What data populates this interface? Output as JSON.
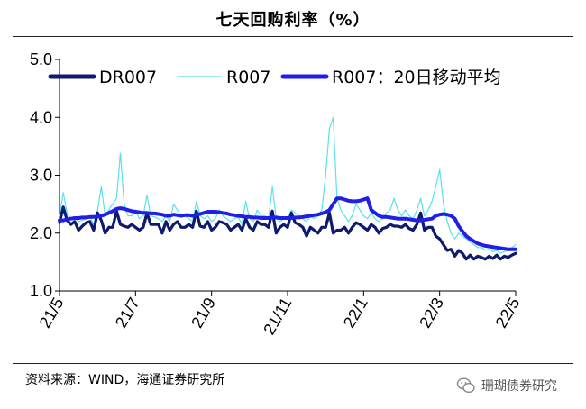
{
  "header": {
    "title": "七天回购利率（%）"
  },
  "footer": {
    "source": "资料来源：WIND，海通证券研究所"
  },
  "watermark": {
    "text": "珊瑚债券研究",
    "icon": "wechat-logo-icon"
  },
  "colors": {
    "dr007": "#0d1a6e",
    "r007": "#5ce0ee",
    "r007_ma20": "#1f1fe8",
    "axis": "#000000",
    "rule": "#222222"
  },
  "chart_data": {
    "type": "line",
    "title": "七天回购利率（%）",
    "xlabel": "",
    "ylabel": "",
    "ylim": [
      1.0,
      5.0
    ],
    "yticks": [
      "1.0",
      "2.0",
      "3.0",
      "4.0",
      "5.0"
    ],
    "xticks": [
      "21/5",
      "21/7",
      "21/9",
      "21/11",
      "22/1",
      "22/3",
      "22/5"
    ],
    "grid": false,
    "legend_position": "top",
    "x": [
      0,
      2,
      4,
      6,
      8,
      10,
      12,
      14,
      16,
      18,
      20,
      22,
      24,
      26,
      28,
      30,
      32,
      34,
      36,
      38,
      40,
      42,
      44,
      46,
      48,
      50,
      52,
      54,
      56,
      58,
      60,
      62,
      64,
      66,
      68,
      70,
      72,
      74,
      76,
      78,
      80,
      82,
      84,
      86,
      88,
      90,
      92,
      94,
      96,
      98,
      100,
      102,
      104,
      106,
      108,
      110,
      112,
      114,
      116,
      118,
      120,
      122,
      124,
      126,
      128,
      130,
      132,
      134,
      136,
      138,
      140,
      142,
      144,
      146,
      148,
      150,
      152,
      154,
      156,
      158,
      160,
      162,
      164,
      166,
      168,
      170,
      172,
      174,
      176,
      178,
      180,
      182,
      184,
      186,
      188,
      190,
      192,
      194,
      196,
      198,
      200,
      202,
      204,
      206,
      208,
      210,
      212,
      214,
      216,
      218,
      220,
      222,
      224,
      226,
      228,
      230,
      232,
      234,
      236,
      238,
      240
    ],
    "series": [
      {
        "name": "DR007",
        "values": [
          2.18,
          2.45,
          2.22,
          2.15,
          2.2,
          2.05,
          2.12,
          2.18,
          2.2,
          2.05,
          2.35,
          2.22,
          2.0,
          2.1,
          2.1,
          2.38,
          2.15,
          2.12,
          2.1,
          2.15,
          2.1,
          2.05,
          2.1,
          2.35,
          2.15,
          2.15,
          2.15,
          2.0,
          2.2,
          2.05,
          2.15,
          2.2,
          2.1,
          2.1,
          2.15,
          2.1,
          2.38,
          2.12,
          2.1,
          2.2,
          2.05,
          2.1,
          2.2,
          2.18,
          2.15,
          2.05,
          2.1,
          2.15,
          2.05,
          2.25,
          2.1,
          2.05,
          2.2,
          2.15,
          2.15,
          2.1,
          2.38,
          2.0,
          2.1,
          2.15,
          2.1,
          2.35,
          2.18,
          2.15,
          2.1,
          1.95,
          2.1,
          2.05,
          2.0,
          2.1,
          2.1,
          2.35,
          2.0,
          2.05,
          2.05,
          2.1,
          2.0,
          2.1,
          2.18,
          2.15,
          2.1,
          2.05,
          2.15,
          2.1,
          2.0,
          2.08,
          2.1,
          2.15,
          2.12,
          2.12,
          2.1,
          2.15,
          2.08,
          2.05,
          2.15,
          2.35,
          2.05,
          2.1,
          2.1,
          1.95,
          1.9,
          1.8,
          1.7,
          1.72,
          1.6,
          1.7,
          1.65,
          1.55,
          1.62,
          1.55,
          1.6,
          1.58,
          1.55,
          1.6,
          1.56,
          1.62,
          1.55,
          1.6,
          1.58,
          1.62,
          1.65
        ]
      },
      {
        "name": "R007",
        "values": [
          2.3,
          2.7,
          2.35,
          2.25,
          2.28,
          2.2,
          2.22,
          2.25,
          2.28,
          2.15,
          2.4,
          2.8,
          2.3,
          2.4,
          2.5,
          2.6,
          3.38,
          2.5,
          2.3,
          2.3,
          2.4,
          2.25,
          2.3,
          2.65,
          2.3,
          2.28,
          2.25,
          2.2,
          2.3,
          2.2,
          2.5,
          2.4,
          2.3,
          2.3,
          2.25,
          2.2,
          2.55,
          2.3,
          2.25,
          2.3,
          2.2,
          2.25,
          2.4,
          2.3,
          2.25,
          2.2,
          2.25,
          2.28,
          2.15,
          2.55,
          2.25,
          2.2,
          2.4,
          2.3,
          2.3,
          2.25,
          2.8,
          2.25,
          2.2,
          2.25,
          2.25,
          2.4,
          2.35,
          2.3,
          2.25,
          2.2,
          2.3,
          2.25,
          2.3,
          2.4,
          3.0,
          3.8,
          4.0,
          2.6,
          2.4,
          2.3,
          2.2,
          2.3,
          2.5,
          2.4,
          2.3,
          2.25,
          2.35,
          2.25,
          2.2,
          2.25,
          2.35,
          2.4,
          2.6,
          2.4,
          2.3,
          2.4,
          2.3,
          2.25,
          2.4,
          2.6,
          2.3,
          2.4,
          2.55,
          2.8,
          3.1,
          2.5,
          2.2,
          2.0,
          1.9,
          2.0,
          1.95,
          1.9,
          1.85,
          1.8,
          1.75,
          1.75,
          1.7,
          1.72,
          1.68,
          1.7,
          1.65,
          1.68,
          1.7,
          1.75,
          1.8
        ]
      },
      {
        "name": "R007：20日移动平均",
        "values": [
          2.22,
          2.22,
          2.24,
          2.25,
          2.26,
          2.26,
          2.27,
          2.27,
          2.28,
          2.28,
          2.29,
          2.3,
          2.32,
          2.35,
          2.38,
          2.42,
          2.43,
          2.42,
          2.4,
          2.38,
          2.37,
          2.36,
          2.35,
          2.35,
          2.34,
          2.34,
          2.33,
          2.32,
          2.3,
          2.3,
          2.32,
          2.31,
          2.3,
          2.31,
          2.31,
          2.3,
          2.32,
          2.33,
          2.35,
          2.37,
          2.37,
          2.37,
          2.36,
          2.35,
          2.34,
          2.32,
          2.31,
          2.3,
          2.29,
          2.28,
          2.28,
          2.27,
          2.27,
          2.26,
          2.26,
          2.26,
          2.27,
          2.27,
          2.26,
          2.26,
          2.26,
          2.26,
          2.27,
          2.27,
          2.28,
          2.29,
          2.3,
          2.31,
          2.32,
          2.34,
          2.36,
          2.4,
          2.5,
          2.6,
          2.6,
          2.58,
          2.56,
          2.55,
          2.55,
          2.56,
          2.58,
          2.6,
          2.4,
          2.35,
          2.3,
          2.28,
          2.28,
          2.27,
          2.26,
          2.25,
          2.25,
          2.25,
          2.24,
          2.23,
          2.22,
          2.22,
          2.23,
          2.24,
          2.25,
          2.3,
          2.32,
          2.33,
          2.32,
          2.3,
          2.25,
          2.12,
          2.03,
          1.95,
          1.9,
          1.86,
          1.82,
          1.8,
          1.78,
          1.77,
          1.76,
          1.75,
          1.74,
          1.73,
          1.72,
          1.72,
          1.72
        ]
      }
    ]
  }
}
